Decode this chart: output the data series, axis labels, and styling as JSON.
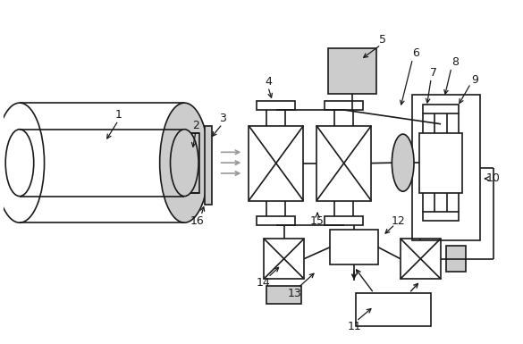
{
  "bg_color": "#ffffff",
  "line_color": "#1a1a1a",
  "gray_fill": "#aaaaaa",
  "light_gray": "#cccccc",
  "arrow_gray": "#888888"
}
